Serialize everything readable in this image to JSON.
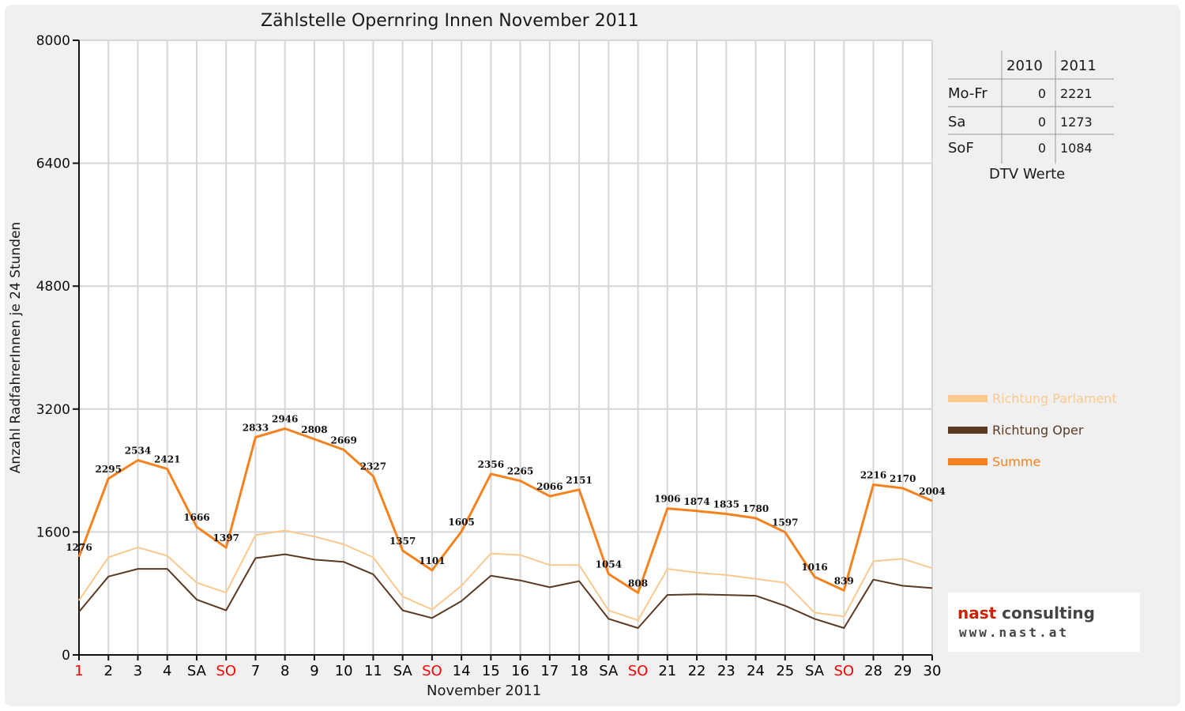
{
  "chart_data": {
    "type": "line",
    "title": "Zählstelle Opernring Innen November 2011",
    "xlabel": "November 2011",
    "ylabel": "Anzahl RadfahrerInnen je 24 Stunden",
    "ylim": [
      0,
      8000
    ],
    "yticks": [
      0,
      1600,
      3200,
      4800,
      6400,
      8000
    ],
    "ytick_labels": [
      "0",
      "1600",
      "3200",
      "4800",
      "6400",
      "8000"
    ],
    "grid": true,
    "legend_position": "right",
    "categories": [
      "1",
      "2",
      "3",
      "4",
      "SA",
      "SO",
      "7",
      "8",
      "9",
      "10",
      "11",
      "SA",
      "SO",
      "14",
      "15",
      "16",
      "17",
      "18",
      "SA",
      "SO",
      "21",
      "22",
      "23",
      "24",
      "25",
      "SA",
      "SO",
      "28",
      "29",
      "30"
    ],
    "category_colors": [
      "#ff0000",
      "#000000",
      "#000000",
      "#000000",
      "#000000",
      "#ff0000",
      "#000000",
      "#000000",
      "#000000",
      "#000000",
      "#000000",
      "#000000",
      "#ff0000",
      "#000000",
      "#000000",
      "#000000",
      "#000000",
      "#000000",
      "#000000",
      "#ff0000",
      "#000000",
      "#000000",
      "#000000",
      "#000000",
      "#000000",
      "#000000",
      "#ff0000",
      "#000000",
      "#000000",
      "#000000"
    ],
    "series": [
      {
        "name": "Richtung Parlament",
        "color": "#fbc98e",
        "values": [
          710,
          1270,
          1400,
          1290,
          940,
          810,
          1560,
          1620,
          1540,
          1440,
          1270,
          760,
          590,
          900,
          1320,
          1300,
          1170,
          1170,
          580,
          450,
          1120,
          1070,
          1040,
          990,
          940,
          550,
          500,
          1220,
          1250,
          1130
        ]
      },
      {
        "name": "Richtung Oper",
        "color": "#5c3a22",
        "values": [
          560,
          1020,
          1120,
          1120,
          720,
          580,
          1260,
          1310,
          1240,
          1210,
          1050,
          580,
          480,
          700,
          1030,
          970,
          880,
          960,
          470,
          350,
          780,
          790,
          780,
          770,
          640,
          470,
          350,
          980,
          900,
          870
        ]
      },
      {
        "name": "Summe",
        "color": "#f5821f",
        "values": [
          1276,
          2295,
          2534,
          2421,
          1666,
          1397,
          2833,
          2946,
          2808,
          2669,
          2327,
          1357,
          1101,
          1605,
          2356,
          2265,
          2066,
          2151,
          1054,
          808,
          1906,
          1874,
          1835,
          1780,
          1597,
          1016,
          839,
          2216,
          2170,
          2004
        ],
        "data_labels": [
          "1276",
          "2295",
          "2534",
          "2421",
          "1666",
          "1397",
          "2833",
          "2946",
          "2808",
          "2669",
          "2327",
          "1357",
          "1101",
          "1605",
          "2356",
          "2265",
          "2066",
          "2151",
          "1054",
          "808",
          "1906",
          "1874",
          "1835",
          "1780",
          "1597",
          "1016",
          "839",
          "2216",
          "2170",
          "2004"
        ]
      }
    ]
  },
  "dtv_table": {
    "caption": "DTV Werte",
    "columns": [
      "2010",
      "2011"
    ],
    "rows": [
      {
        "label": "Mo-Fr",
        "v2010": "0",
        "v2011": "2221"
      },
      {
        "label": "Sa",
        "v2010": "0",
        "v2011": "1273"
      },
      {
        "label": "SoF",
        "v2010": "0",
        "v2011": "1084"
      }
    ]
  },
  "legend": [
    {
      "label": "Richtung Parlament",
      "color": "#fbc98e",
      "text_color": "#fbc98e"
    },
    {
      "label": "Richtung Oper",
      "color": "#5c3a22",
      "text_color": "#5c3a22"
    },
    {
      "label": "Summe",
      "color": "#f5821f",
      "text_color": "#f5821f"
    }
  ],
  "logo": {
    "name_part1": "nast",
    "name_part2": "consulting",
    "website": "www.nast.at"
  }
}
